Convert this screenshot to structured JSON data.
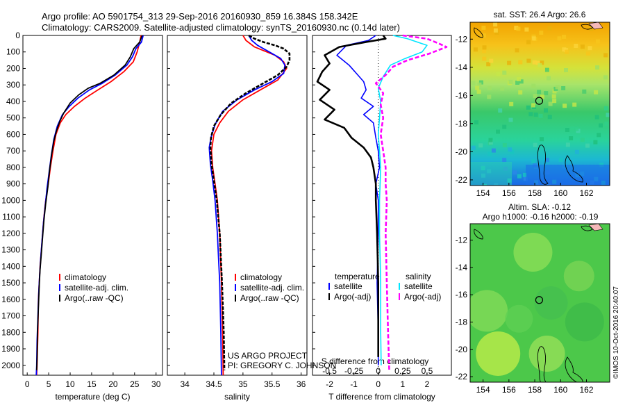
{
  "header": {
    "line1": "Argo profile: AO 5901754_313 29-Sep-2016 20160930_859 16.384S 158.342E",
    "line2": "Climatology: CARS2009. Satellite-adjusted climatology: synTS_20160930.nc (0.14d later)"
  },
  "credit": "©IMOS 10-Oct-2016 20:40:07",
  "colors": {
    "climatology": "#ff0000",
    "satellite": "#0000ff",
    "argo": "#000000",
    "sal_sat": "#00e5ff",
    "sal_argo": "#ff00ff"
  },
  "depth_axis": {
    "ticks": [
      "0",
      "100",
      "200",
      "300",
      "400",
      "500",
      "600",
      "700",
      "800",
      "900",
      "1000",
      "1100",
      "1200",
      "1300",
      "1400",
      "1500",
      "1600",
      "1700",
      "1800",
      "1900",
      "2000"
    ],
    "range": [
      0,
      2060
    ]
  },
  "chart_data": [
    {
      "type": "line",
      "id": "temperature",
      "xlabel": "temperature (deg C)",
      "xlim": [
        -1,
        31.5
      ],
      "xticks": [
        "0",
        "5",
        "10",
        "15",
        "20",
        "25",
        "30"
      ],
      "legend": [
        "climatology",
        "satellite-adj. clim.",
        "Argo(..raw -QC)"
      ],
      "series": [
        {
          "name": "climatology",
          "color": "#ff0000",
          "points": [
            [
              26.5,
              0
            ],
            [
              26.2,
              40
            ],
            [
              25.6,
              100
            ],
            [
              24.7,
              160
            ],
            [
              22.5,
              220
            ],
            [
              19.5,
              280
            ],
            [
              16.5,
              330
            ],
            [
              13.5,
              380
            ],
            [
              11.0,
              430
            ],
            [
              9.0,
              480
            ],
            [
              7.7,
              530
            ],
            [
              6.7,
              600
            ],
            [
              6.0,
              700
            ],
            [
              5.4,
              800
            ],
            [
              4.9,
              900
            ],
            [
              4.3,
              1000
            ],
            [
              3.9,
              1100
            ],
            [
              3.6,
              1200
            ],
            [
              3.3,
              1300
            ],
            [
              3.0,
              1400
            ],
            [
              2.8,
              1500
            ],
            [
              2.6,
              1600
            ],
            [
              2.5,
              1800
            ],
            [
              2.3,
              2000
            ],
            [
              2.2,
              2060
            ]
          ]
        },
        {
          "name": "satellite-adj. clim.",
          "color": "#0000ff",
          "points": [
            [
              27.0,
              0
            ],
            [
              26.6,
              40
            ],
            [
              25.3,
              80
            ],
            [
              24.5,
              130
            ],
            [
              23.2,
              180
            ],
            [
              20.5,
              240
            ],
            [
              17.5,
              290
            ],
            [
              14.5,
              330
            ],
            [
              11.8,
              380
            ],
            [
              9.8,
              430
            ],
            [
              8.2,
              480
            ],
            [
              7.0,
              550
            ],
            [
              6.2,
              630
            ],
            [
              5.6,
              730
            ],
            [
              5.1,
              830
            ],
            [
              4.6,
              930
            ],
            [
              4.2,
              1030
            ],
            [
              3.8,
              1130
            ],
            [
              3.5,
              1230
            ],
            [
              3.2,
              1330
            ],
            [
              2.9,
              1450
            ],
            [
              2.7,
              1550
            ],
            [
              2.5,
              1700
            ],
            [
              2.3,
              1850
            ],
            [
              2.2,
              2000
            ],
            [
              2.1,
              2060
            ]
          ]
        },
        {
          "name": "Argo(..raw -QC)",
          "color": "#000000",
          "points": [
            [
              26.8,
              0
            ],
            [
              26.6,
              10
            ],
            [
              26.2,
              40
            ],
            [
              24.8,
              80
            ],
            [
              24.0,
              130
            ],
            [
              22.8,
              180
            ],
            [
              20.2,
              240
            ],
            [
              17.0,
              290
            ],
            [
              14.2,
              320
            ],
            [
              12.0,
              360
            ],
            [
              10.0,
              410
            ],
            [
              8.5,
              470
            ],
            [
              7.6,
              520
            ],
            [
              6.8,
              580
            ],
            [
              6.2,
              640
            ],
            [
              5.7,
              720
            ],
            [
              5.2,
              820
            ],
            [
              4.8,
              920
            ],
            [
              4.3,
              1020
            ],
            [
              3.9,
              1120
            ],
            [
              3.6,
              1220
            ],
            [
              3.3,
              1320
            ],
            [
              3.0,
              1420
            ],
            [
              2.8,
              1520
            ],
            [
              2.6,
              1650
            ],
            [
              2.4,
              1800
            ],
            [
              2.3,
              1950
            ],
            [
              2.2,
              2030
            ]
          ]
        }
      ]
    },
    {
      "type": "line",
      "id": "salinity",
      "xlabel": "salinity",
      "xlim": [
        33.7,
        36.1
      ],
      "xticks": [
        "34",
        "34.5",
        "35",
        "35.5",
        "36"
      ],
      "legend": [
        "climatology",
        "satellite-adj. clim.",
        "Argo(..raw -QC)"
      ],
      "annotation": [
        "US ARGO PROJECT",
        "PI: GREGORY C. JOHNSON"
      ],
      "series": [
        {
          "name": "climatology",
          "color": "#ff0000",
          "points": [
            [
              35.0,
              0
            ],
            [
              35.05,
              30
            ],
            [
              35.2,
              70
            ],
            [
              35.55,
              120
            ],
            [
              35.7,
              160
            ],
            [
              35.75,
              200
            ],
            [
              35.6,
              270
            ],
            [
              35.3,
              330
            ],
            [
              35.0,
              390
            ],
            [
              34.75,
              460
            ],
            [
              34.6,
              530
            ],
            [
              34.5,
              600
            ],
            [
              34.46,
              700
            ],
            [
              34.48,
              800
            ],
            [
              34.52,
              900
            ],
            [
              34.56,
              1000
            ],
            [
              34.6,
              1200
            ],
            [
              34.63,
              1500
            ],
            [
              34.65,
              1800
            ],
            [
              34.66,
              2060
            ]
          ]
        },
        {
          "name": "satellite-adj. clim.",
          "color": "#0000ff",
          "points": [
            [
              35.1,
              0
            ],
            [
              35.15,
              30
            ],
            [
              35.25,
              60
            ],
            [
              35.45,
              100
            ],
            [
              35.65,
              140
            ],
            [
              35.72,
              180
            ],
            [
              35.7,
              230
            ],
            [
              35.5,
              280
            ],
            [
              35.2,
              330
            ],
            [
              34.9,
              390
            ],
            [
              34.65,
              460
            ],
            [
              34.52,
              540
            ],
            [
              34.45,
              620
            ],
            [
              34.42,
              680
            ],
            [
              34.44,
              780
            ],
            [
              34.48,
              880
            ],
            [
              34.52,
              1000
            ],
            [
              34.56,
              1200
            ],
            [
              34.6,
              1500
            ],
            [
              34.62,
              1800
            ],
            [
              34.63,
              2060
            ]
          ]
        },
        {
          "name": "Argo(..raw -QC)",
          "color": "#000000",
          "points": [
            [
              35.1,
              0
            ],
            [
              35.2,
              20
            ],
            [
              35.35,
              40
            ],
            [
              35.55,
              60
            ],
            [
              35.7,
              80
            ],
            [
              35.8,
              110
            ],
            [
              35.8,
              150
            ],
            [
              35.75,
              190
            ],
            [
              35.6,
              240
            ],
            [
              35.3,
              300
            ],
            [
              35.05,
              350
            ],
            [
              34.8,
              410
            ],
            [
              34.62,
              480
            ],
            [
              34.5,
              550
            ],
            [
              34.45,
              620
            ],
            [
              34.44,
              680
            ],
            [
              34.46,
              780
            ],
            [
              34.5,
              880
            ],
            [
              34.55,
              1000
            ],
            [
              34.6,
              1200
            ],
            [
              34.64,
              1500
            ],
            [
              34.67,
              1800
            ],
            [
              34.68,
              2030
            ]
          ]
        }
      ]
    },
    {
      "type": "line",
      "id": "difference",
      "xlabel_t": "T difference from climatology",
      "xlabel_s": "S difference from climatology",
      "xlim_t": [
        -2.7,
        3.0
      ],
      "xticks_t": [
        "-2",
        "-1",
        "0",
        "1",
        "2"
      ],
      "xticks_s": [
        "-0.5",
        "-0.25",
        "0",
        "0.25",
        "0.5"
      ],
      "legend": {
        "temperature_title": "temperature",
        "salinity_title": "salinity",
        "satellite": "satellite",
        "argo": "Argo(-adj)"
      },
      "series": [
        {
          "name": "temperature satellite",
          "color": "#0000ff",
          "points": [
            [
              -0.1,
              0
            ],
            [
              -0.4,
              30
            ],
            [
              -1.3,
              60
            ],
            [
              -1.7,
              120
            ],
            [
              -1.2,
              180
            ],
            [
              -0.9,
              230
            ],
            [
              -0.6,
              280
            ],
            [
              -0.5,
              330
            ],
            [
              -0.7,
              380
            ],
            [
              -0.2,
              430
            ],
            [
              -0.6,
              480
            ],
            [
              -0.2,
              530
            ],
            [
              -0.1,
              620
            ],
            [
              0.0,
              700
            ],
            [
              0.05,
              800
            ],
            [
              -0.1,
              900
            ],
            [
              0.0,
              1000
            ],
            [
              0.0,
              1200
            ],
            [
              -0.05,
              1500
            ],
            [
              0.0,
              1800
            ],
            [
              0.0,
              2000
            ]
          ]
        },
        {
          "name": "temperature Argo(-adj)",
          "color": "#000000",
          "points": [
            [
              0.2,
              0
            ],
            [
              0.3,
              20
            ],
            [
              -0.5,
              40
            ],
            [
              -1.6,
              70
            ],
            [
              -2.2,
              120
            ],
            [
              -2.0,
              170
            ],
            [
              -2.3,
              220
            ],
            [
              -2.5,
              280
            ],
            [
              -2.0,
              330
            ],
            [
              -2.4,
              390
            ],
            [
              -1.8,
              450
            ],
            [
              -2.2,
              510
            ],
            [
              -1.4,
              560
            ],
            [
              -1.1,
              620
            ],
            [
              -0.6,
              680
            ],
            [
              -0.3,
              740
            ],
            [
              -0.2,
              800
            ],
            [
              -0.1,
              900
            ],
            [
              -0.1,
              1000
            ],
            [
              -0.05,
              1200
            ],
            [
              0.0,
              1500
            ],
            [
              0.0,
              1800
            ],
            [
              0.0,
              1950
            ]
          ]
        },
        {
          "name": "salinity satellite",
          "color": "#00e5ff",
          "points": [
            [
              0.6,
              0
            ],
            [
              1.2,
              20
            ],
            [
              2.0,
              60
            ],
            [
              1.8,
              100
            ],
            [
              1.1,
              140
            ],
            [
              0.5,
              180
            ],
            [
              0.2,
              250
            ],
            [
              0.0,
              320
            ],
            [
              0.1,
              400
            ],
            [
              0.05,
              500
            ],
            [
              0.0,
              600
            ],
            [
              0.05,
              700
            ],
            [
              0.1,
              800
            ],
            [
              0.05,
              1000
            ],
            [
              0.05,
              1200
            ],
            [
              0.1,
              1500
            ],
            [
              0.1,
              1800
            ],
            [
              0.12,
              2000
            ]
          ]
        },
        {
          "name": "salinity Argo(-adj)",
          "color": "#ff00ff",
          "points": [
            [
              1.0,
              0
            ],
            [
              2.0,
              20
            ],
            [
              2.5,
              50
            ],
            [
              2.8,
              70
            ],
            [
              2.1,
              110
            ],
            [
              1.2,
              150
            ],
            [
              0.6,
              190
            ],
            [
              0.3,
              240
            ],
            [
              -0.1,
              290
            ],
            [
              0.2,
              350
            ],
            [
              0.1,
              420
            ],
            [
              0.2,
              500
            ],
            [
              0.1,
              600
            ],
            [
              0.2,
              700
            ],
            [
              0.3,
              800
            ],
            [
              0.3,
              900
            ],
            [
              0.35,
              1000
            ],
            [
              0.3,
              1200
            ],
            [
              0.35,
              1500
            ],
            [
              0.4,
              1800
            ],
            [
              0.45,
              2030
            ]
          ]
        }
      ]
    },
    {
      "type": "heatmap",
      "id": "sst-map",
      "title": "sat. SST: 26.4  Argo: 26.6",
      "xticks": [
        "154",
        "156",
        "158",
        "160",
        "162"
      ],
      "yticks": [
        "-12",
        "-14",
        "-16",
        "-18",
        "-20",
        "-22"
      ],
      "xlim": [
        153.0,
        163.8
      ],
      "ylim": [
        -22.4,
        -10.8
      ],
      "marker": {
        "lon": 158.342,
        "lat": -16.384
      }
    },
    {
      "type": "heatmap",
      "id": "sla-map",
      "title_line1": "Altim. SLA: -0.12",
      "title_line2": "Argo h1000: -0.16 h2000: -0.19",
      "xticks": [
        "154",
        "156",
        "158",
        "160",
        "162"
      ],
      "yticks": [
        "-12",
        "-14",
        "-16",
        "-18",
        "-20",
        "-22"
      ],
      "xlim": [
        153.0,
        163.8
      ],
      "ylim": [
        -22.4,
        -10.8
      ],
      "marker": {
        "lon": 158.342,
        "lat": -16.384
      }
    }
  ]
}
